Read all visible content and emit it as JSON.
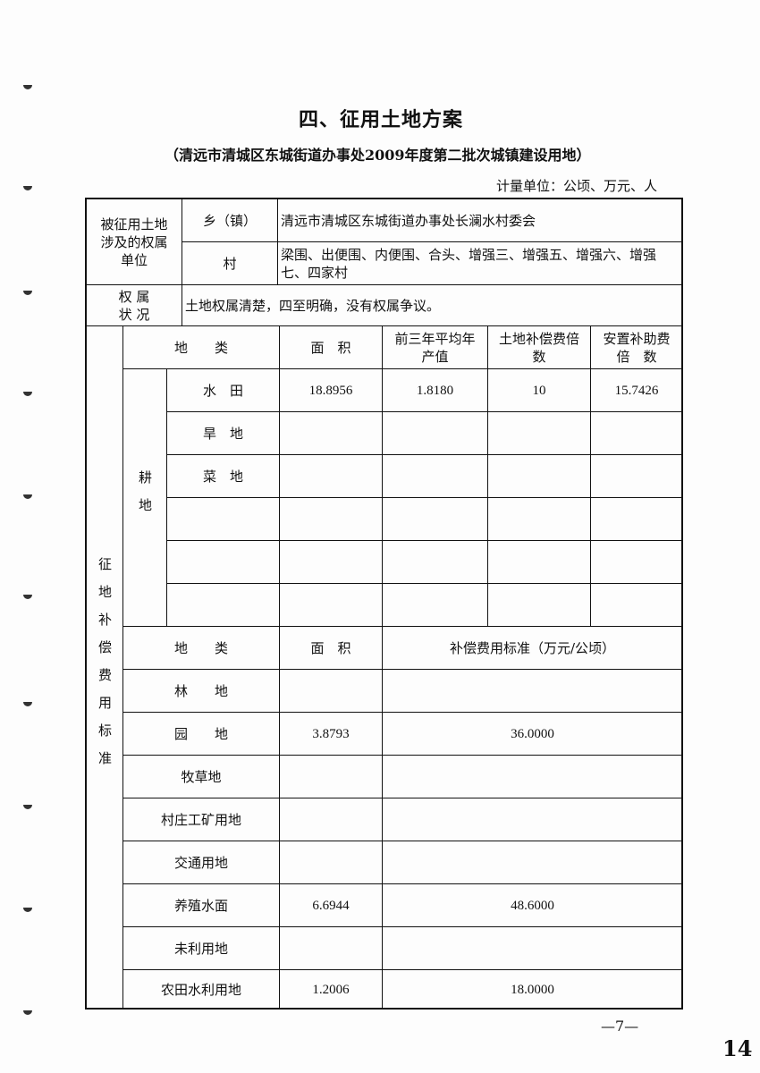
{
  "title": "四、征用土地方案",
  "subtitle": "（清远市清城区东城街道办事处2009年度第二批次城镇建设用地）",
  "unit": "计量单位：公顷、万元、人",
  "ownership": {
    "label": "被征用土地涉及的权属单位",
    "town_label": "乡（镇）",
    "town_value": "清远市清城区东城街道办事处长澜水村委会",
    "village_label": "村",
    "village_value": "梁围、出便围、内便围、合头、增强三、增强五、增强六、增强七、四家村"
  },
  "status": {
    "label": "权 属 状 况",
    "value": "土地权属清楚，四至明确，没有权属争议。"
  },
  "compensation_label": "征地补偿费用标准",
  "farmland": {
    "headers": [
      "地　　类",
      "面　积",
      "前三年平均年产值",
      "土地补偿费倍　数",
      "安置补助费倍　数"
    ],
    "group_label": "耕地",
    "rows": [
      [
        "水　田",
        "18.8956",
        "1.8180",
        "10",
        "15.7426"
      ],
      [
        "旱　地",
        "",
        "",
        "",
        ""
      ],
      [
        "菜　地",
        "",
        "",
        "",
        ""
      ],
      [
        "",
        "",
        "",
        "",
        ""
      ],
      [
        "",
        "",
        "",
        "",
        ""
      ],
      [
        "",
        "",
        "",
        "",
        ""
      ]
    ]
  },
  "other": {
    "headers": [
      "地　　类",
      "面　积",
      "补偿费用标准（万元/公顷）"
    ],
    "rows": [
      [
        "林　　地",
        "",
        ""
      ],
      [
        "园　　地",
        "3.8793",
        "36.0000"
      ],
      [
        "牧草地",
        "",
        ""
      ],
      [
        "村庄工矿用地",
        "",
        ""
      ],
      [
        "交通用地",
        "",
        ""
      ],
      [
        "养殖水面",
        "6.6944",
        "48.6000"
      ],
      [
        "未利用地",
        "",
        ""
      ],
      [
        "农田水利用地",
        "1.2006",
        "18.0000"
      ]
    ]
  },
  "page_number": "—7—",
  "stamp_number": "14"
}
